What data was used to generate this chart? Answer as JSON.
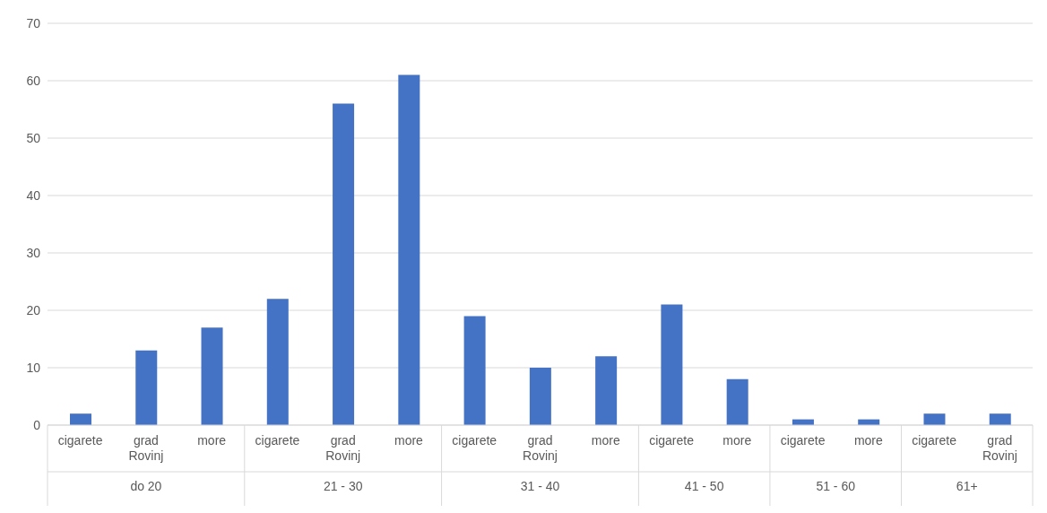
{
  "chart_data": {
    "type": "bar",
    "categories": [
      "cigarete",
      "grad Rovinj",
      "more",
      "cigarete",
      "grad Rovinj",
      "more",
      "cigarete",
      "grad Rovinj",
      "more",
      "cigarete",
      "more",
      "cigarete",
      "more",
      "cigarete",
      "grad Rovinj"
    ],
    "values": [
      2,
      13,
      17,
      22,
      56,
      61,
      19,
      10,
      12,
      21,
      8,
      1,
      1,
      2,
      2
    ],
    "color": "#4472c4",
    "ylim": [
      0,
      70
    ],
    "yticks": [
      0,
      10,
      20,
      30,
      40,
      50,
      60,
      70
    ],
    "grid": "y",
    "annotations": [
      "do 20",
      "21 - 30",
      "31 - 40",
      "41 - 50",
      "51 - 60",
      "61+"
    ]
  }
}
